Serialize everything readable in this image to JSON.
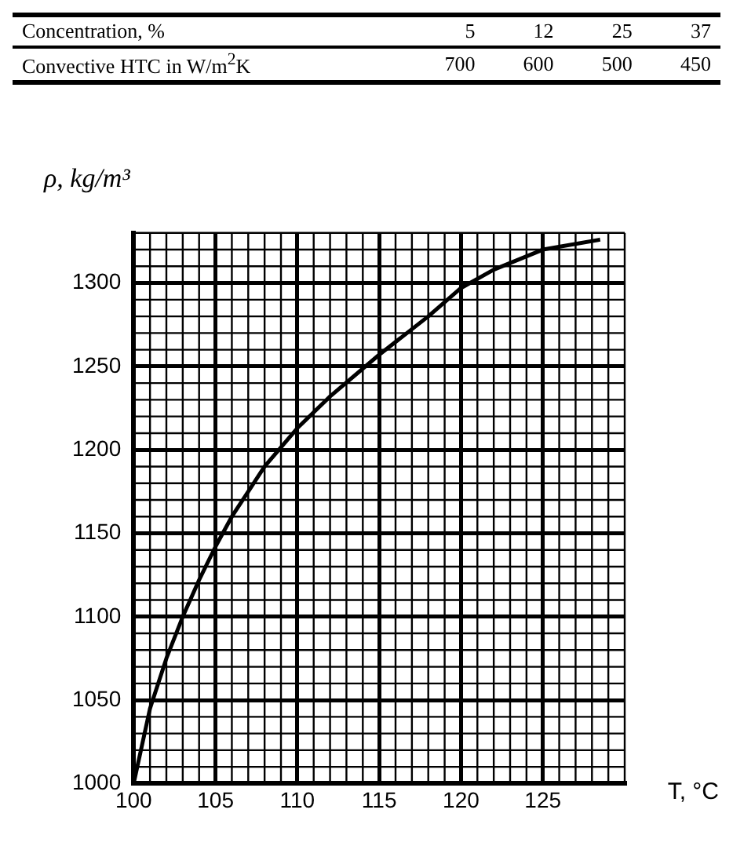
{
  "chart_data": [
    {
      "type": "other",
      "xlabel": "Concentration, %",
      "ylabel": "Convective HTC in W/m$^{2}$K",
      "categories": [
        "5",
        "12",
        "25",
        "37"
      ],
      "values": [
        700,
        600,
        500,
        450
      ],
      "data_labels": true
    },
    {
      "type": "line",
      "xlabel": "T, °C",
      "ylabel": "ρ, kg/m³",
      "x": [
        100,
        101,
        102,
        103,
        104,
        105,
        106,
        107,
        108,
        110,
        112,
        115,
        118,
        120,
        122,
        125,
        128.5
      ],
      "series": [
        {
          "color": "#000000",
          "values": [
            1000,
            1045,
            1075,
            1100,
            1122,
            1142,
            1160,
            1175,
            1190,
            1213,
            1232,
            1257,
            1280,
            1297,
            1308,
            1320,
            1326
          ]
        }
      ],
      "xlim": [
        100,
        130
      ],
      "ylim": [
        1000,
        1330
      ],
      "xticks": [
        100,
        105,
        110,
        115,
        120,
        125
      ],
      "yticks": [
        1000,
        1050,
        1100,
        1150,
        1200,
        1250,
        1300
      ],
      "grid": true,
      "marker": "none",
      "line_style": "solid",
      "legend": false
    }
  ]
}
